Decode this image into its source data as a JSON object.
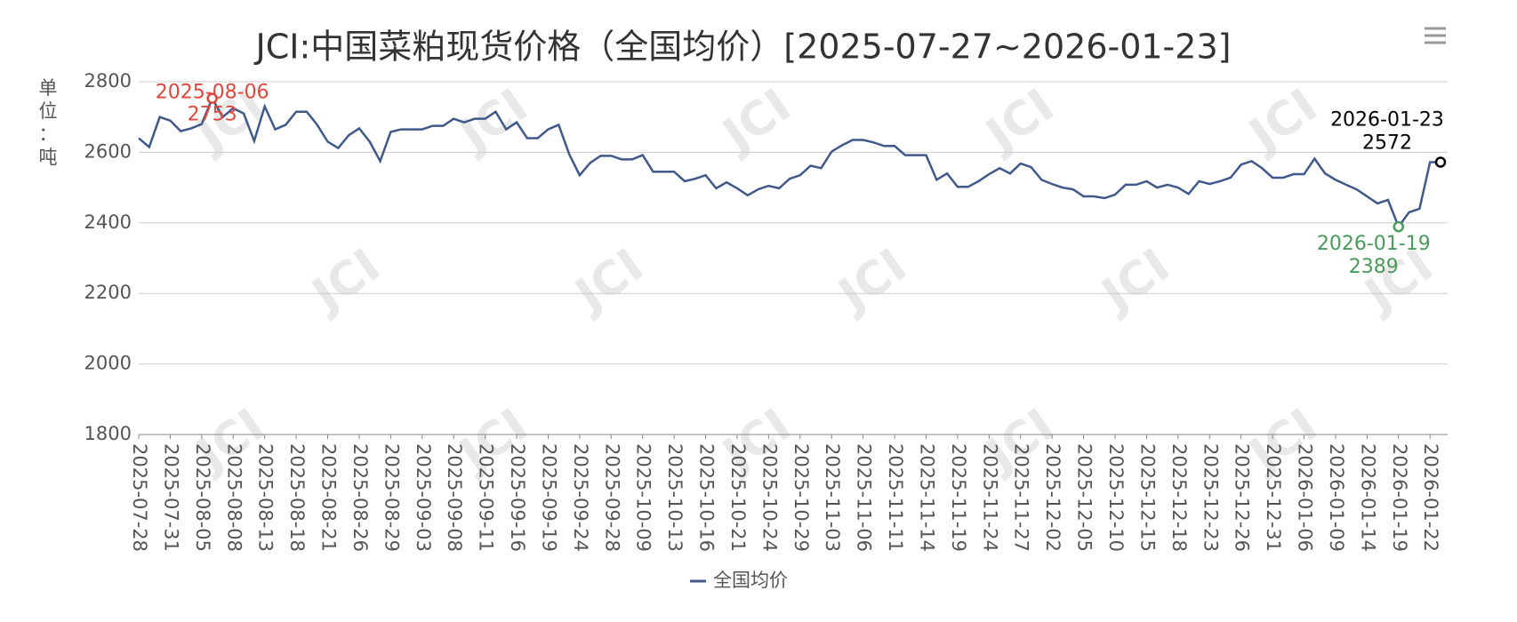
{
  "chart_data": {
    "type": "line",
    "title": "JCI:中国菜粕现货价格（全国均价）[2025-07-27~2026-01-23]",
    "y_axis_label": "单位：吨",
    "watermark": "JCI",
    "categories": [
      "2025-07-28",
      null,
      null,
      "2025-07-31",
      null,
      null,
      "2025-08-05",
      null,
      null,
      "2025-08-08",
      null,
      null,
      "2025-08-13",
      null,
      null,
      "2025-08-18",
      null,
      null,
      "2025-08-21",
      null,
      null,
      "2025-08-26",
      null,
      null,
      "2025-08-29",
      null,
      null,
      "2025-09-03",
      null,
      null,
      "2025-09-08",
      null,
      null,
      "2025-09-11",
      null,
      null,
      "2025-09-16",
      null,
      null,
      "2025-09-19",
      null,
      null,
      "2025-09-24",
      null,
      null,
      "2025-09-28",
      null,
      null,
      "2025-10-09",
      null,
      null,
      "2025-10-13",
      null,
      null,
      "2025-10-16",
      null,
      null,
      "2025-10-21",
      null,
      null,
      "2025-10-24",
      null,
      null,
      "2025-10-29",
      null,
      null,
      "2025-11-03",
      null,
      null,
      "2025-11-06",
      null,
      null,
      "2025-11-11",
      null,
      null,
      "2025-11-14",
      null,
      null,
      "2025-11-19",
      null,
      null,
      "2025-11-24",
      null,
      null,
      "2025-11-27",
      null,
      null,
      "2025-12-02",
      null,
      null,
      "2025-12-05",
      null,
      null,
      "2025-12-10",
      null,
      null,
      "2025-12-15",
      null,
      null,
      "2025-12-18",
      null,
      null,
      "2025-12-23",
      null,
      null,
      "2025-12-26",
      null,
      null,
      "2025-12-31",
      null,
      null,
      "2026-01-06",
      null,
      null,
      "2026-01-09",
      null,
      null,
      "2026-01-14",
      null,
      null,
      "2026-01-19",
      null,
      null,
      "2026-01-22",
      null
    ],
    "series": [
      {
        "name": "全国均价",
        "color": "#40598a",
        "values": [
          2640,
          2615,
          2700,
          2690,
          2660,
          2668,
          2680,
          2753,
          2700,
          2725,
          2710,
          2632,
          2730,
          2665,
          2678,
          2715,
          2715,
          2678,
          2630,
          2612,
          2648,
          2668,
          2630,
          2575,
          2658,
          2665,
          2665,
          2665,
          2675,
          2675,
          2695,
          2685,
          2695,
          2695,
          2715,
          2665,
          2685,
          2640,
          2640,
          2665,
          2678,
          2595,
          2535,
          2570,
          2590,
          2590,
          2580,
          2580,
          2592,
          2545,
          2545,
          2545,
          2518,
          2525,
          2535,
          2498,
          2515,
          2498,
          2478,
          2495,
          2505,
          2498,
          2525,
          2535,
          2562,
          2555,
          2602,
          2620,
          2635,
          2635,
          2628,
          2618,
          2618,
          2592,
          2592,
          2592,
          2522,
          2540,
          2502,
          2502,
          2518,
          2538,
          2555,
          2540,
          2568,
          2558,
          2522,
          2510,
          2500,
          2495,
          2475,
          2475,
          2470,
          2480,
          2508,
          2508,
          2518,
          2500,
          2508,
          2500,
          2482,
          2518,
          2510,
          2518,
          2528,
          2565,
          2575,
          2555,
          2528,
          2528,
          2538,
          2538,
          2582,
          2540,
          2522,
          2508,
          2495,
          2475,
          2455,
          2465,
          2389,
          2430,
          2440,
          2572,
          2572
        ]
      }
    ],
    "markers": [
      {
        "kind": "max",
        "label": "2025-08-06",
        "value": 2753,
        "color": "#e0473c"
      },
      {
        "kind": "min",
        "label": "2026-01-19",
        "value": 2389,
        "color": "#4a9a5c"
      },
      {
        "kind": "last",
        "label": "2026-01-23",
        "value": 2572,
        "color": "#000000"
      }
    ],
    "ylim": [
      1800,
      2800
    ],
    "yticks": [
      1800,
      2000,
      2200,
      2400,
      2600,
      2800
    ],
    "grid": true,
    "legend": "bottom"
  }
}
